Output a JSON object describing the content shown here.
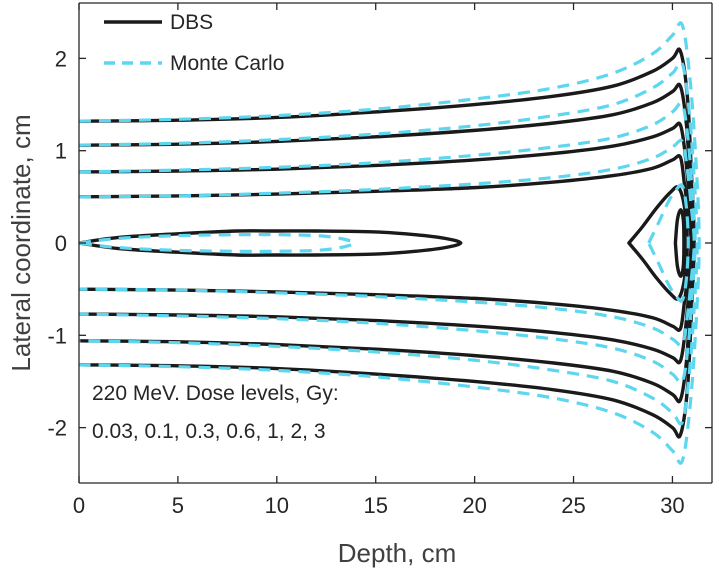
{
  "chart_data": {
    "type": "line",
    "title": "",
    "xlabel": "Depth, cm",
    "ylabel": "Lateral coordinate, cm",
    "xlim": [
      0,
      32
    ],
    "ylim": [
      -2.6,
      2.6
    ],
    "xticks": [
      0,
      5,
      10,
      15,
      20,
      25,
      30
    ],
    "yticks": [
      -2,
      -1,
      0,
      1,
      2
    ],
    "xtick_labels": [
      "0",
      "5",
      "10",
      "15",
      "20",
      "25",
      "30"
    ],
    "ytick_labels": [
      "-2",
      "-1",
      "0",
      "1",
      "2"
    ],
    "grid": false,
    "legend": {
      "position": "top-left",
      "entries": [
        {
          "label": "DBS",
          "style": "solid",
          "color": "#1a1a1a"
        },
        {
          "label": "Monte Carlo",
          "style": "dashed",
          "color": "#5dd6ef"
        }
      ]
    },
    "annotation": {
      "line1": "220 MeV. Dose levels, Gy:",
      "line2": "0.03, 0.1, 0.3, 0.6, 1, 2, 3",
      "position": "bottom-left"
    },
    "series": [
      {
        "name": "DBS",
        "color": "#1a1a1a",
        "style": "solid",
        "isodose_curves": [
          {
            "level": "0.03",
            "x": [
              0,
              5,
              10,
              15,
              20,
              24,
              27,
              29,
              30,
              30.4,
              30.75,
              30.95,
              31.1,
              30.95,
              30.75,
              30.4,
              30,
              29,
              27,
              24,
              20,
              15,
              10,
              5,
              0
            ],
            "y": [
              1.32,
              1.33,
              1.36,
              1.42,
              1.5,
              1.59,
              1.7,
              1.86,
              2.0,
              2.08,
              1.6,
              0.8,
              0,
              -0.8,
              -1.6,
              -2.08,
              -2.0,
              -1.86,
              -1.7,
              -1.59,
              -1.5,
              -1.42,
              -1.36,
              -1.33,
              -1.32
            ]
          },
          {
            "level": "0.1",
            "x": [
              0,
              5,
              10,
              15,
              20,
              24,
              27,
              29,
              30,
              30.4,
              30.7,
              30.9,
              31.05,
              30.9,
              30.7,
              30.4,
              30,
              29,
              27,
              24,
              20,
              15,
              10,
              5,
              0
            ],
            "y": [
              1.06,
              1.07,
              1.1,
              1.15,
              1.22,
              1.3,
              1.39,
              1.52,
              1.64,
              1.7,
              1.3,
              0.65,
              0,
              -0.65,
              -1.3,
              -1.7,
              -1.64,
              -1.52,
              -1.39,
              -1.3,
              -1.22,
              -1.15,
              -1.1,
              -1.07,
              -1.06
            ]
          },
          {
            "level": "0.3",
            "x": [
              0,
              5,
              10,
              15,
              20,
              24,
              27,
              29,
              30,
              30.4,
              30.65,
              30.85,
              31.0,
              30.85,
              30.65,
              30.4,
              30,
              29,
              27,
              24,
              20,
              15,
              10,
              5,
              0
            ],
            "y": [
              0.77,
              0.78,
              0.8,
              0.84,
              0.9,
              0.97,
              1.05,
              1.15,
              1.24,
              1.28,
              0.95,
              0.48,
              0,
              -0.48,
              -0.95,
              -1.28,
              -1.24,
              -1.15,
              -1.05,
              -0.97,
              -0.9,
              -0.84,
              -0.8,
              -0.78,
              -0.77
            ]
          },
          {
            "level": "0.6",
            "x": [
              0,
              5,
              10,
              15,
              20,
              24,
              27,
              29,
              30,
              30.4,
              30.6,
              30.8,
              30.95,
              30.8,
              30.6,
              30.4,
              30,
              29,
              27,
              24,
              20,
              15,
              10,
              5,
              0
            ],
            "y": [
              0.5,
              0.51,
              0.53,
              0.56,
              0.6,
              0.66,
              0.73,
              0.81,
              0.9,
              0.93,
              0.65,
              0.32,
              0,
              -0.32,
              -0.65,
              -0.93,
              -0.9,
              -0.81,
              -0.73,
              -0.66,
              -0.6,
              -0.56,
              -0.53,
              -0.51,
              -0.5
            ]
          },
          {
            "level": "1",
            "x": [
              0,
              2,
              5,
              8,
              10,
              12,
              15,
              17,
              18.5,
              19.3,
              18.5,
              17,
              15,
              12,
              10,
              8,
              5,
              2,
              0
            ],
            "y": [
              0.0,
              0.06,
              0.1,
              0.13,
              0.13,
              0.13,
              0.12,
              0.09,
              0.05,
              0.0,
              -0.05,
              -0.09,
              -0.12,
              -0.13,
              -0.13,
              -0.13,
              -0.1,
              -0.06,
              0.0
            ]
          },
          {
            "level": "2",
            "x": [
              27.8,
              28.5,
              29.2,
              29.9,
              30.3,
              30.6,
              30.75,
              30.6,
              30.3,
              29.9,
              29.2,
              28.5,
              27.8
            ],
            "y": [
              0.0,
              0.18,
              0.38,
              0.55,
              0.6,
              0.4,
              0.0,
              -0.4,
              -0.6,
              -0.55,
              -0.38,
              -0.18,
              0.0
            ]
          },
          {
            "level": "3",
            "x": [
              30.15,
              30.25,
              30.42,
              30.55,
              30.58,
              30.55,
              30.42,
              30.25,
              30.15
            ],
            "y": [
              0.0,
              0.25,
              0.36,
              0.25,
              0.0,
              -0.25,
              -0.36,
              -0.25,
              0.0
            ]
          }
        ]
      },
      {
        "name": "Monte Carlo",
        "color": "#5dd6ef",
        "style": "dashed",
        "isodose_curves": [
          {
            "level": "0.03",
            "x": [
              0,
              5,
              10,
              15,
              20,
              24,
              27,
              29,
              30,
              30.5,
              30.9,
              31.2,
              31.35,
              31.2,
              30.9,
              30.5,
              30,
              29,
              27,
              24,
              20,
              15,
              10,
              5,
              0
            ],
            "y": [
              1.32,
              1.34,
              1.38,
              1.45,
              1.56,
              1.68,
              1.84,
              2.05,
              2.25,
              2.36,
              1.75,
              0.85,
              0,
              -0.85,
              -1.75,
              -2.36,
              -2.25,
              -2.05,
              -1.84,
              -1.68,
              -1.56,
              -1.45,
              -1.38,
              -1.34,
              -1.32
            ]
          },
          {
            "level": "0.1",
            "x": [
              0,
              5,
              10,
              15,
              20,
              24,
              27,
              29,
              30,
              30.5,
              30.85,
              31.1,
              31.25,
              31.1,
              30.85,
              30.5,
              30,
              29,
              27,
              24,
              20,
              15,
              10,
              5,
              0
            ],
            "y": [
              1.06,
              1.08,
              1.12,
              1.18,
              1.27,
              1.38,
              1.5,
              1.68,
              1.84,
              1.94,
              1.42,
              0.7,
              0,
              -0.7,
              -1.42,
              -1.94,
              -1.84,
              -1.68,
              -1.5,
              -1.38,
              -1.27,
              -1.18,
              -1.12,
              -1.08,
              -1.06
            ]
          },
          {
            "level": "0.3",
            "x": [
              0,
              5,
              10,
              15,
              20,
              24,
              27,
              29,
              30,
              30.5,
              30.8,
              31.0,
              31.15,
              31.0,
              30.8,
              30.5,
              30,
              29,
              27,
              24,
              20,
              15,
              10,
              5,
              0
            ],
            "y": [
              0.77,
              0.79,
              0.82,
              0.87,
              0.95,
              1.04,
              1.14,
              1.28,
              1.42,
              1.5,
              1.1,
              0.55,
              0,
              -0.55,
              -1.1,
              -1.5,
              -1.42,
              -1.28,
              -1.14,
              -1.04,
              -0.95,
              -0.87,
              -0.82,
              -0.79,
              -0.77
            ]
          },
          {
            "level": "0.6",
            "x": [
              0,
              5,
              10,
              15,
              20,
              24,
              27,
              29,
              30,
              30.5,
              30.75,
              30.95,
              31.1,
              30.95,
              30.75,
              30.5,
              30,
              29,
              27,
              24,
              20,
              15,
              10,
              5,
              0
            ],
            "y": [
              0.5,
              0.51,
              0.54,
              0.58,
              0.64,
              0.71,
              0.8,
              0.92,
              1.04,
              1.1,
              0.8,
              0.4,
              0,
              -0.4,
              -0.8,
              -1.1,
              -1.04,
              -0.92,
              -0.8,
              -0.71,
              -0.64,
              -0.58,
              -0.54,
              -0.51,
              -0.5
            ]
          },
          {
            "level": "1",
            "x": [
              0,
              2,
              5,
              8,
              10,
              12,
              13.2,
              13.9,
              13.2,
              12,
              10,
              8,
              5,
              2,
              0
            ],
            "y": [
              0.0,
              0.05,
              0.08,
              0.09,
              0.09,
              0.08,
              0.05,
              0.0,
              -0.05,
              -0.08,
              -0.09,
              -0.09,
              -0.08,
              -0.05,
              0.0
            ]
          },
          {
            "level": "2",
            "x": [
              28.8,
              29.3,
              29.8,
              30.2,
              30.5,
              30.7,
              30.8,
              30.7,
              30.5,
              30.2,
              29.8,
              29.3,
              28.8
            ],
            "y": [
              0.0,
              0.22,
              0.45,
              0.58,
              0.62,
              0.4,
              0.0,
              -0.4,
              -0.62,
              -0.58,
              -0.45,
              -0.22,
              0.0
            ]
          }
        ]
      }
    ]
  }
}
